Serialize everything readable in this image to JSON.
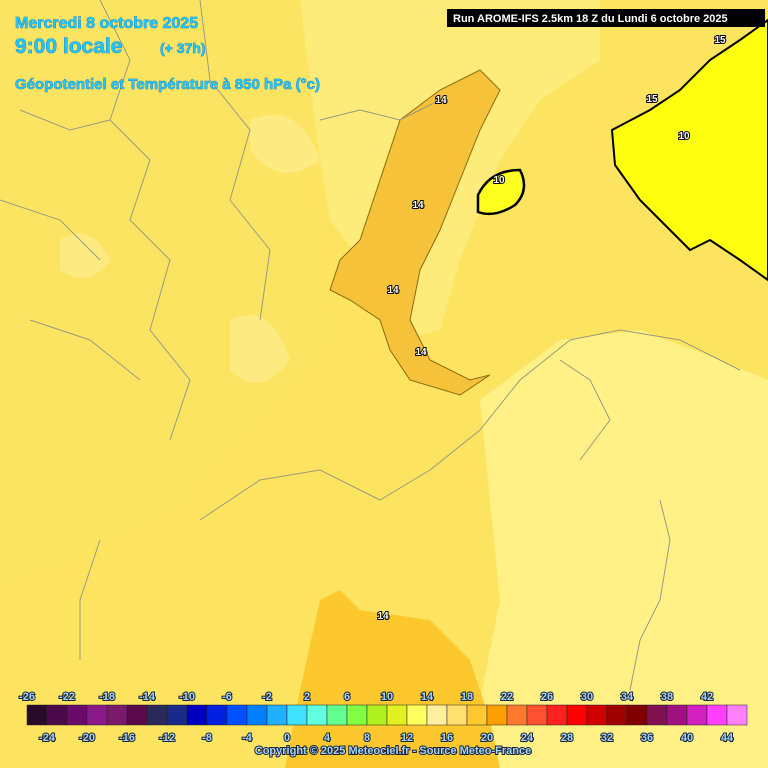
{
  "header": {
    "date": "Mercredi 8 octobre 2025",
    "time": "9:00 locale",
    "lead": "(+ 37h)",
    "field": "Géopotentiel et Température à 850 hPa (°c)",
    "run": "Run AROME-IFS 2.5km 18 Z du Lundi 6 octobre 2025"
  },
  "map": {
    "contour_labels": [
      "14",
      "14",
      "14",
      "14",
      "14",
      "10",
      "10",
      "15",
      "15"
    ]
  },
  "legend": {
    "ticks_top": [
      "-26",
      "-22",
      "-18",
      "-14",
      "-10",
      "-6",
      "-2",
      "2",
      "6",
      "10",
      "14",
      "18",
      "22",
      "26",
      "30",
      "34",
      "38",
      "42"
    ],
    "ticks_bottom": [
      "-24",
      "-20",
      "-16",
      "-12",
      "-8",
      "-4",
      "0",
      "4",
      "8",
      "12",
      "16",
      "20",
      "24",
      "28",
      "32",
      "36",
      "40",
      "44"
    ],
    "colors": [
      "#2a0a2a",
      "#4a0a4a",
      "#6a0a6a",
      "#8a1a8a",
      "#7a1a6a",
      "#5a0a4a",
      "#2a2a5a",
      "#1a2a8a",
      "#0000c0",
      "#0020e0",
      "#0050ff",
      "#0080ff",
      "#20b0ff",
      "#40e0ff",
      "#60ffe0",
      "#60ff90",
      "#80ff40",
      "#b0f020",
      "#e0f020",
      "#ffff60",
      "#fff0a0",
      "#ffe070",
      "#ffc830",
      "#ffa000",
      "#ff7830",
      "#ff5030",
      "#ff2020",
      "#ff0000",
      "#d00000",
      "#a00000",
      "#800000",
      "#801050",
      "#a01080",
      "#d020c0",
      "#ff40ff",
      "#ff80ff"
    ]
  },
  "footer": {
    "copyright": "Copyright © 2025 Meteociel.fr - Source Meteo-France"
  }
}
